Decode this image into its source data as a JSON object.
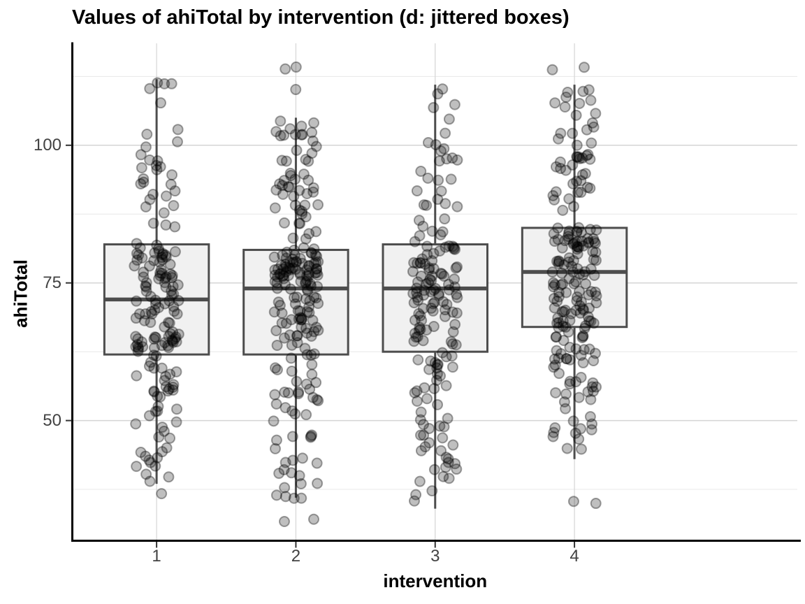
{
  "chart_data": {
    "type": "boxplot",
    "subtype": "boxplot-with-jittered-points",
    "title": "Values of ahiTotal by intervention (d: jittered boxes)",
    "xlabel": "intervention",
    "ylabel": "ahiTotal",
    "categories": [
      "1",
      "2",
      "3",
      "4"
    ],
    "legend": null,
    "grid": true,
    "y_axis": {
      "range_approx": [
        28,
        118.5
      ],
      "major_ticks": [
        50,
        75,
        100
      ],
      "minor_gridlines": [
        37.5,
        62.5,
        87.5,
        112.5
      ]
    },
    "y_ticks_display": [
      {
        "value": 100,
        "label": "100"
      },
      {
        "value": 75,
        "label": "75"
      },
      {
        "value": 50,
        "label": "50"
      }
    ],
    "groups": [
      {
        "category": "1",
        "whisker_low": 38.5,
        "q1": 62,
        "median": 72,
        "q3": 82,
        "whisker_high": 112,
        "outliers_low": [
          37
        ],
        "outliers_high": [],
        "min": 37,
        "max": 112,
        "n_points_est": 170
      },
      {
        "category": "2",
        "whisker_low": 36,
        "q1": 62,
        "median": 74,
        "q3": 81,
        "whisker_high": 105,
        "outliers_low": [
          32,
          32
        ],
        "outliers_high": [
          110,
          114,
          114
        ],
        "min": 32,
        "max": 114,
        "n_points_est": 215
      },
      {
        "category": "3",
        "whisker_low": 34,
        "q1": 62.5,
        "median": 74,
        "q3": 82,
        "whisker_high": 111,
        "outliers_low": [],
        "outliers_high": [],
        "min": 34,
        "max": 111,
        "n_points_est": 165
      },
      {
        "category": "4",
        "whisker_low": 43,
        "q1": 67,
        "median": 77,
        "q3": 85,
        "whisker_high": 111,
        "outliers_low": [
          35,
          35
        ],
        "outliers_high": [
          114,
          114
        ],
        "min": 35,
        "max": 114,
        "n_points_est": 205
      }
    ],
    "style": {
      "box_fill": "#F1F1F1",
      "box_stroke": "#4D4D4D",
      "median_stroke": "#4D4D4D",
      "point_color": "#000000",
      "point_fill_alpha": 0.25,
      "point_stroke_alpha": 0.35,
      "grid_major_color": "#D5D5D5",
      "grid_minor_color": "#E8E8E8",
      "axis_line_color": "#000000",
      "tick_mark_color": "#333333"
    }
  }
}
